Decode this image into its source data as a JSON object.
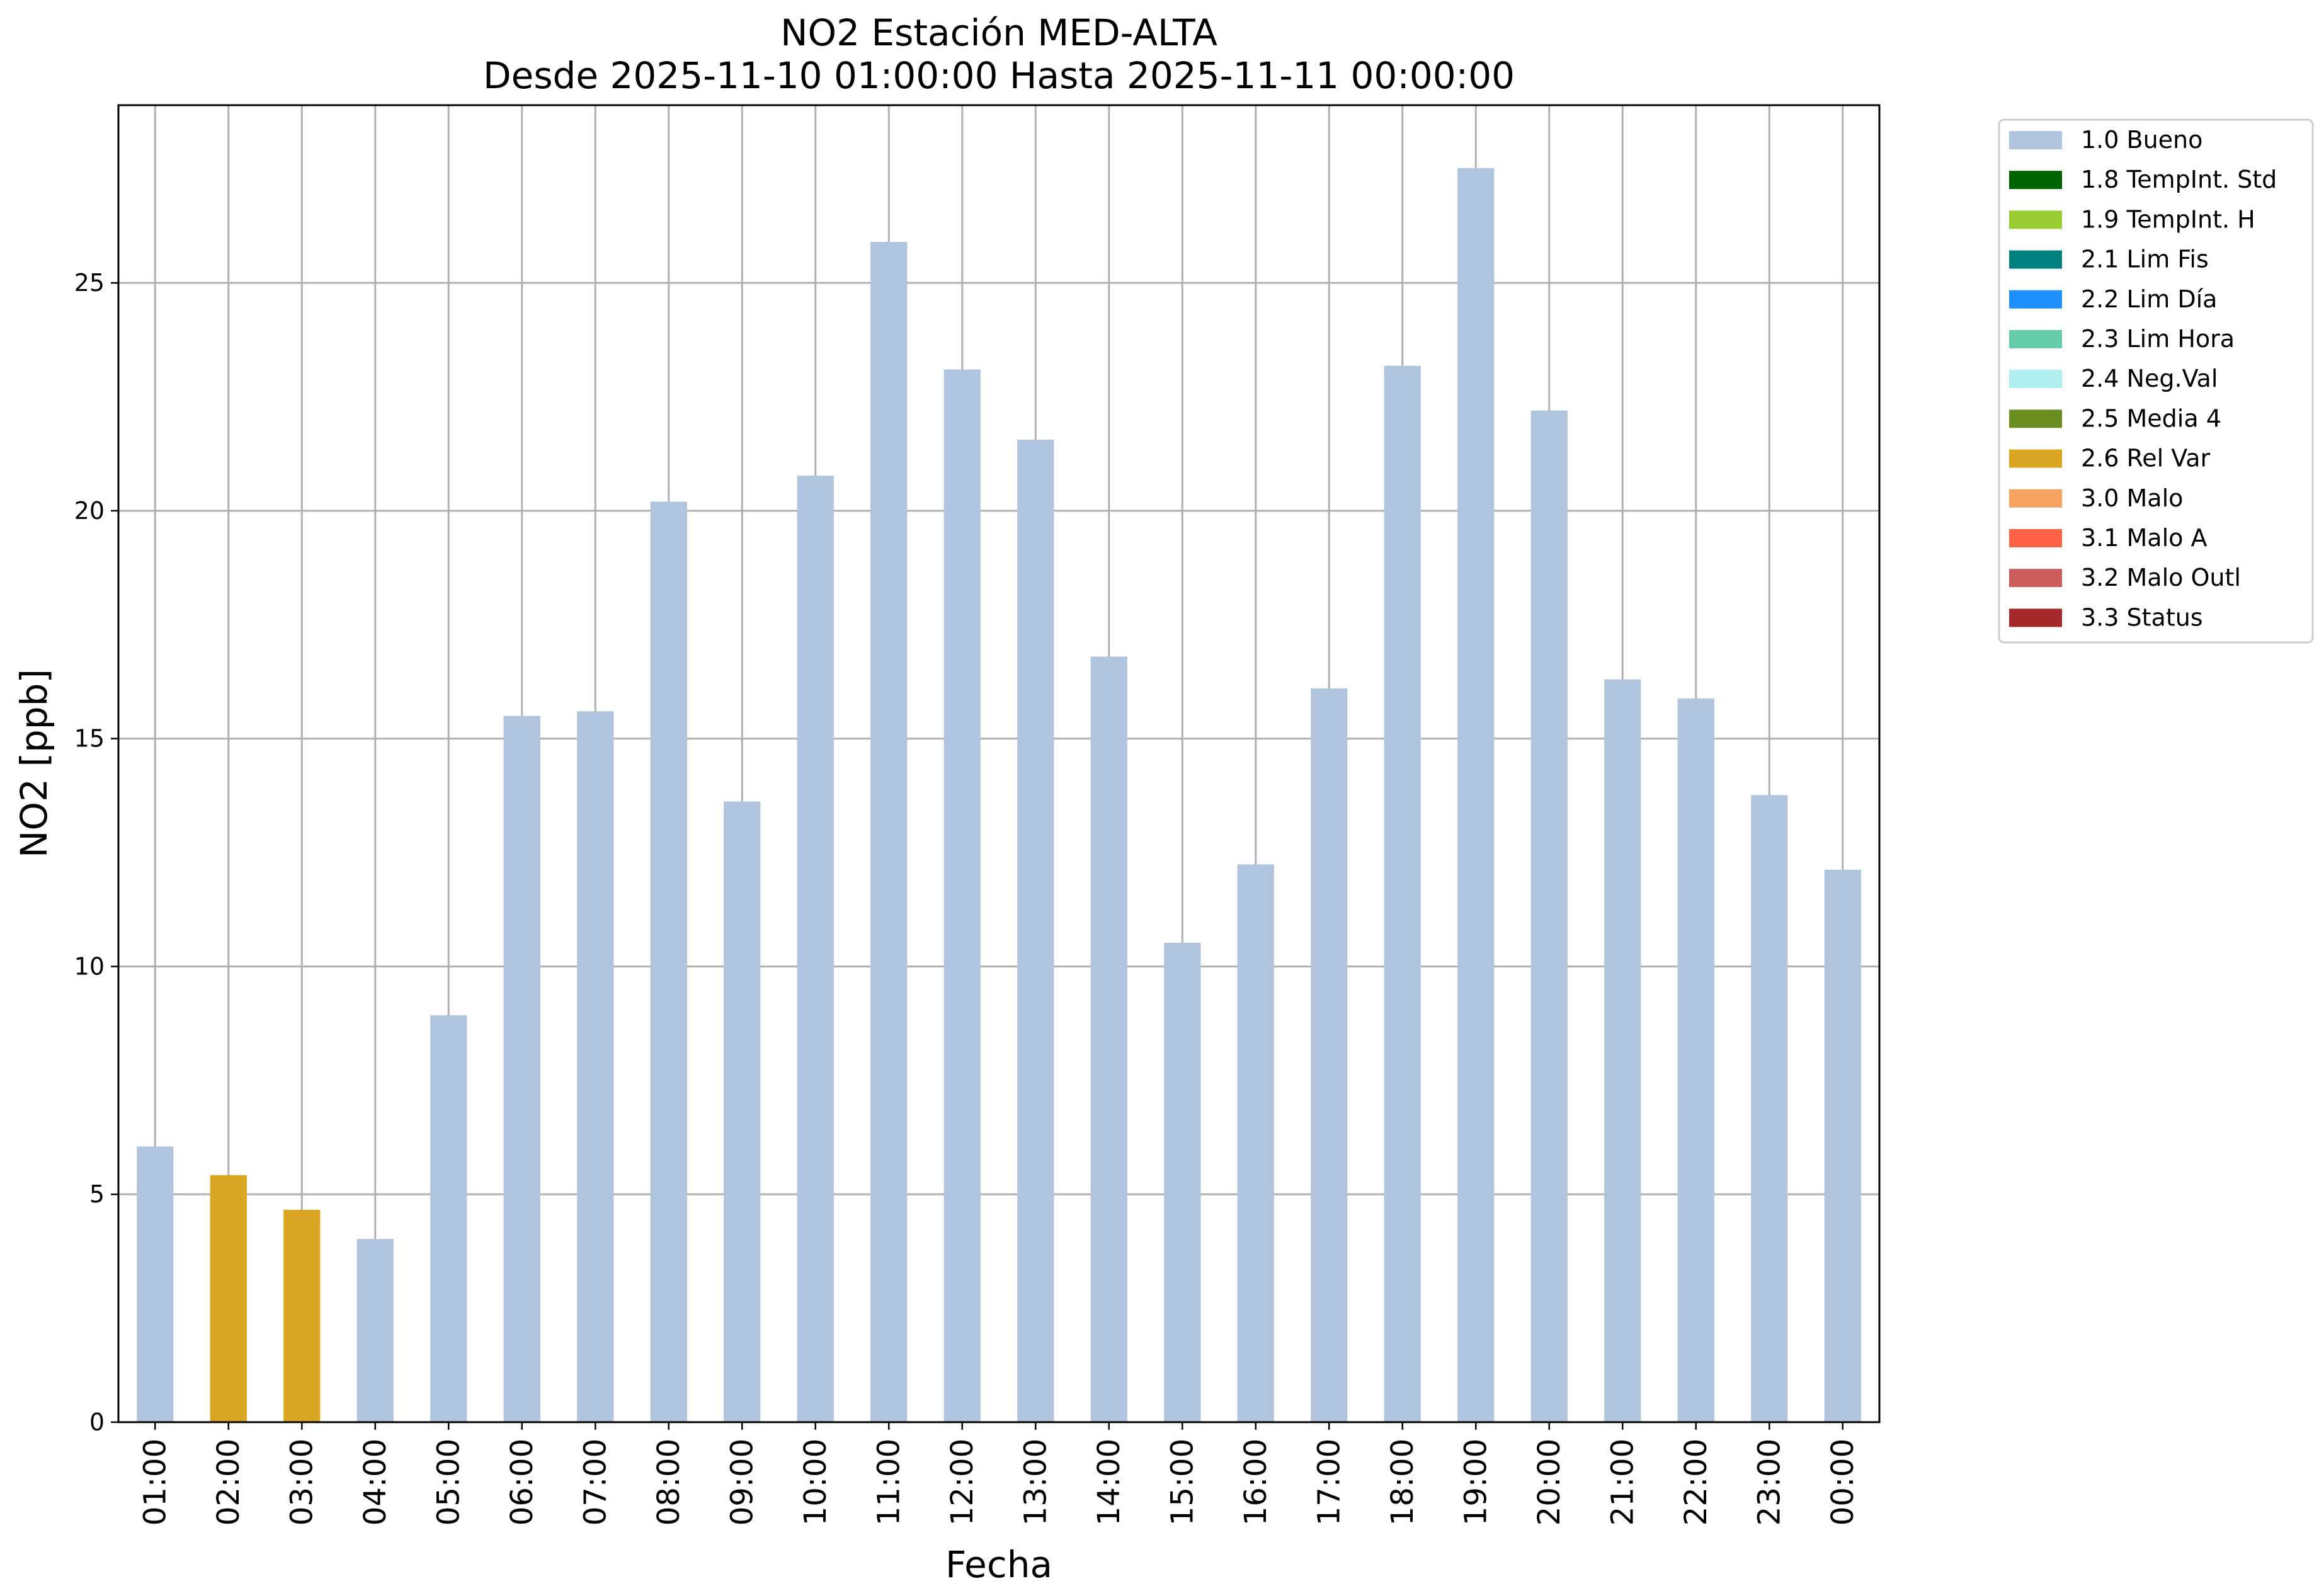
{
  "chart_data": {
    "type": "bar",
    "title": "NO2 Estación MED-ALTA",
    "subtitle": "Desde 2025-11-10 01:00:00 Hasta 2025-11-11 00:00:00",
    "xlabel": "Fecha",
    "ylabel": "NO2 [ppb]",
    "ylim": [
      0,
      28.9
    ],
    "yticks": [
      0,
      5,
      10,
      15,
      20,
      25
    ],
    "grid": true,
    "legend_placement": "outside-top-right",
    "categories": [
      "01:00",
      "02:00",
      "03:00",
      "04:00",
      "05:00",
      "06:00",
      "07:00",
      "08:00",
      "09:00",
      "10:00",
      "11:00",
      "12:00",
      "13:00",
      "14:00",
      "15:00",
      "16:00",
      "17:00",
      "18:00",
      "19:00",
      "20:00",
      "21:00",
      "22:00",
      "23:00",
      "00:00"
    ],
    "values": [
      6.05,
      5.42,
      4.66,
      4.02,
      8.93,
      15.5,
      15.6,
      20.2,
      13.62,
      20.77,
      25.9,
      23.1,
      21.56,
      16.8,
      10.52,
      12.24,
      16.1,
      23.18,
      27.52,
      22.2,
      16.3,
      15.88,
      13.76,
      12.12
    ],
    "flags": [
      "1.0 Bueno",
      "2.6 Rel Var",
      "2.6 Rel Var",
      "1.0 Bueno",
      "1.0 Bueno",
      "1.0 Bueno",
      "1.0 Bueno",
      "1.0 Bueno",
      "1.0 Bueno",
      "1.0 Bueno",
      "1.0 Bueno",
      "1.0 Bueno",
      "1.0 Bueno",
      "1.0 Bueno",
      "1.0 Bueno",
      "1.0 Bueno",
      "1.0 Bueno",
      "1.0 Bueno",
      "1.0 Bueno",
      "1.0 Bueno",
      "1.0 Bueno",
      "1.0 Bueno",
      "1.0 Bueno",
      "1.0 Bueno"
    ],
    "legend": [
      {
        "label": "1.0 Bueno",
        "color": "#b0c4de"
      },
      {
        "label": "1.8 TempInt. Std",
        "color": "#006400"
      },
      {
        "label": "1.9 TempInt. H",
        "color": "#9acd32"
      },
      {
        "label": "2.1 Lim Fis",
        "color": "#008080"
      },
      {
        "label": "2.2 Lim Día",
        "color": "#1e90ff"
      },
      {
        "label": "2.3 Lim Hora",
        "color": "#66cdaa"
      },
      {
        "label": "2.4 Neg.Val",
        "color": "#afeeee"
      },
      {
        "label": "2.5 Media 4",
        "color": "#6b8e23"
      },
      {
        "label": "2.6 Rel Var",
        "color": "#daa520"
      },
      {
        "label": "3.0 Malo",
        "color": "#f4a460"
      },
      {
        "label": "3.1 Malo A",
        "color": "#ff6347"
      },
      {
        "label": "3.2 Malo Outl",
        "color": "#cd5c5c"
      },
      {
        "label": "3.3 Status",
        "color": "#a52a2a"
      }
    ]
  }
}
